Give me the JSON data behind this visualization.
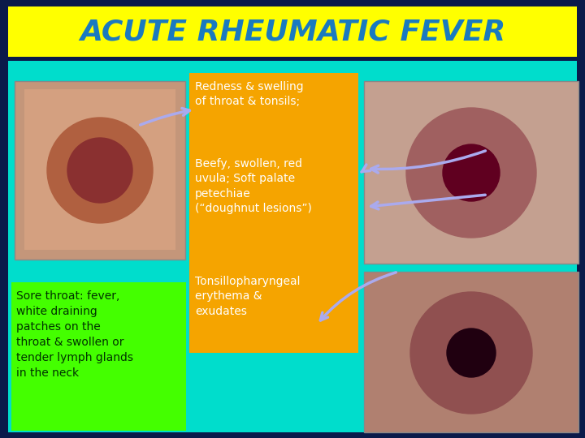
{
  "title": "ACUTE RHEUMATIC FEVER",
  "title_color": "#1a7abf",
  "title_bg": "#ffff00",
  "main_bg": "#0a1a4a",
  "center_bg": "#00ddcc",
  "orange_box_color": "#f5a400",
  "green_box_color": "#44ff00",
  "white_text": "#ffffff",
  "green_text": "#003300",
  "text1": "Redness & swelling\nof throat & tonsils;",
  "text2": "Beefy, swollen, red\nuvula; Soft palate\npetechiae\n(“doughnut lesions”)",
  "text3": "Tonsillopharyngeal\nerythema &\nexudates",
  "text4": "Sore throat: fever,\nwhite draining\npatches on the\nthroat & swollen or\ntender lymph glands\nin the neck",
  "arrow_color": "#aaaaee",
  "figsize": [
    7.2,
    5.4
  ],
  "dpi": 100
}
